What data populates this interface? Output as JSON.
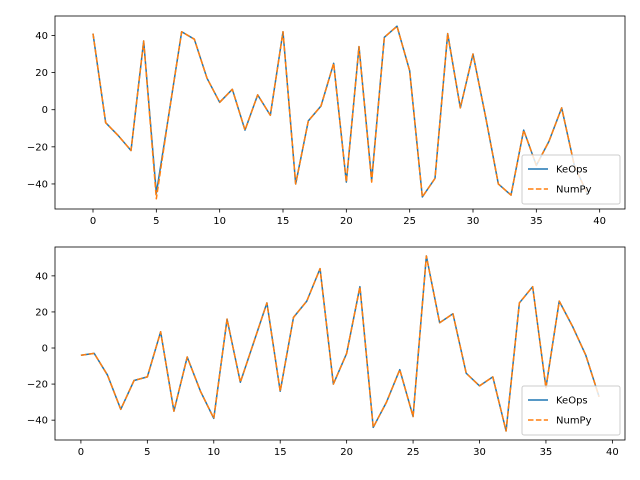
{
  "chart_data": [
    {
      "type": "line",
      "xlim": [
        -3.0,
        42.0
      ],
      "ylim": [
        -53.5,
        50.5
      ],
      "xticks": [
        0,
        5,
        10,
        15,
        20,
        25,
        30,
        35,
        40
      ],
      "yticks": [
        -40,
        -20,
        0,
        20,
        40
      ],
      "grid": false,
      "legend_position": "lower-right",
      "x": [
        0,
        1,
        2,
        3,
        4,
        5,
        6,
        7,
        8,
        9,
        10,
        11,
        12,
        13,
        14,
        15,
        16,
        17,
        18,
        19,
        20,
        21,
        22,
        23,
        24,
        25,
        26,
        27,
        28,
        29,
        30,
        31,
        32,
        33,
        34,
        35,
        36,
        37,
        38,
        39
      ],
      "series": [
        {
          "name": "KeOps",
          "color": "#1f77b4",
          "style": "solid",
          "values": [
            41,
            -7,
            -14,
            -22,
            37,
            -45,
            -2,
            42,
            38,
            17,
            4,
            11,
            -11,
            8,
            -3,
            42,
            -40,
            -6,
            2,
            25,
            -39,
            34,
            -38,
            39,
            45,
            21,
            -47,
            -37,
            41,
            1,
            30,
            -4,
            -40,
            -46,
            -11,
            -30,
            -17,
            1,
            -30,
            -45
          ]
        },
        {
          "name": "NumPy",
          "color": "#ff7f0e",
          "style": "dashed",
          "values": [
            41,
            -7,
            -14,
            -22,
            37,
            -48,
            -2,
            42,
            38,
            17,
            4,
            11,
            -11,
            8,
            -3,
            42,
            -40,
            -6,
            2,
            25,
            -39,
            34,
            -39,
            39,
            45,
            21,
            -47,
            -37,
            41,
            1,
            30,
            -4,
            -40,
            -46,
            -11,
            -30,
            -17,
            1,
            -30,
            -45
          ]
        }
      ]
    },
    {
      "type": "line",
      "xlim": [
        -1.95,
        40.95
      ],
      "ylim": [
        -51.0,
        56.0
      ],
      "xticks": [
        0,
        5,
        10,
        15,
        20,
        25,
        30,
        35,
        40
      ],
      "yticks": [
        -40,
        -20,
        0,
        20,
        40
      ],
      "grid": false,
      "legend_position": "lower-right",
      "x": [
        0,
        1,
        2,
        3,
        4,
        5,
        6,
        7,
        8,
        9,
        10,
        11,
        12,
        13,
        14,
        15,
        16,
        17,
        18,
        19,
        20,
        21,
        22,
        23,
        24,
        25,
        26,
        27,
        28,
        29,
        30,
        31,
        32,
        33,
        34,
        35,
        36,
        37,
        38,
        39
      ],
      "series": [
        {
          "name": "KeOps",
          "color": "#1f77b4",
          "style": "solid",
          "values": [
            -4,
            -3,
            -15,
            -34,
            -18,
            -16,
            9,
            -35,
            -5,
            -24,
            -39,
            16,
            -19,
            3,
            25,
            -24,
            17,
            26,
            44,
            -20,
            -3,
            34,
            -44,
            -30,
            -12,
            -38,
            51,
            14,
            19,
            -14,
            -21,
            -16,
            -46,
            25,
            34,
            -22,
            26,
            12,
            -4,
            -27
          ]
        },
        {
          "name": "NumPy",
          "color": "#ff7f0e",
          "style": "dashed",
          "values": [
            -4,
            -3,
            -15,
            -34,
            -18,
            -16,
            9,
            -35,
            -5,
            -24,
            -39,
            16,
            -19,
            3,
            25,
            -24,
            17,
            26,
            44,
            -20,
            -3,
            34,
            -44,
            -30,
            -12,
            -38,
            51,
            14,
            19,
            -14,
            -21,
            -16,
            -46,
            25,
            34,
            -22,
            26,
            12,
            -4,
            -27
          ]
        }
      ]
    }
  ]
}
